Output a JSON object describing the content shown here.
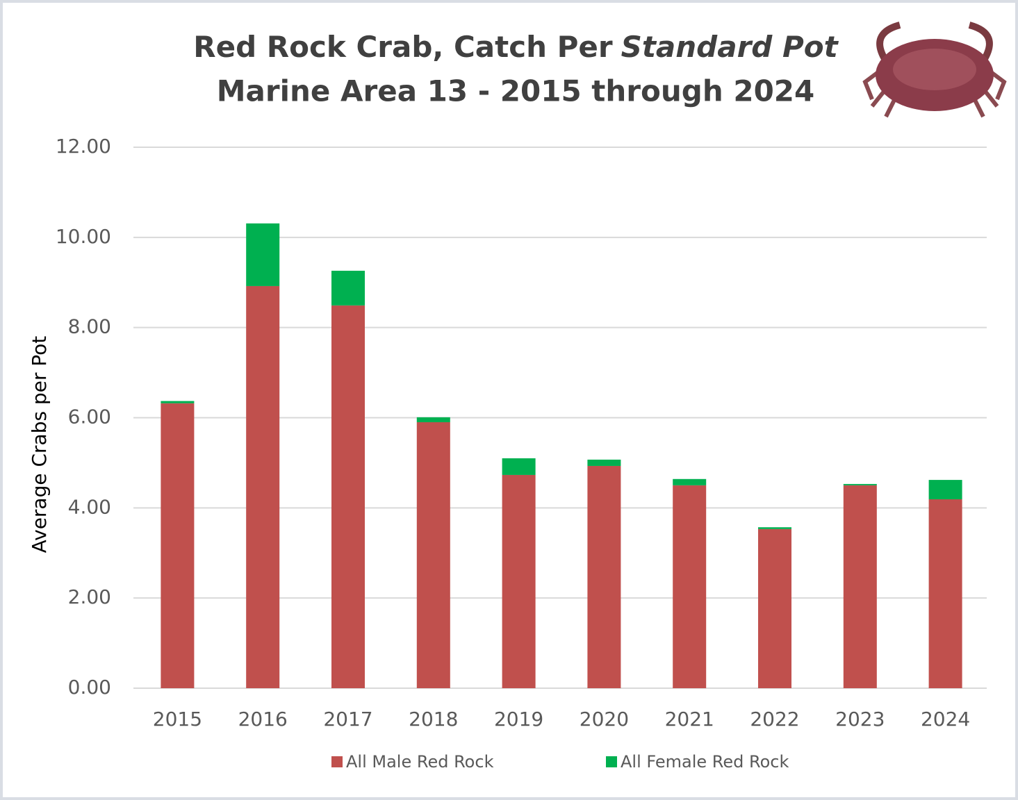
{
  "chart_data": {
    "type": "stacked_bar",
    "title": "Red Rock Crab, Catch Per",
    "title_italic": "Standard Pot",
    "subtitle": "Marine Area 13 - 2015 through 2024",
    "y_label": "Average Crabs per Pot",
    "categories": [
      "2015",
      "2016",
      "2017",
      "2018",
      "2019",
      "2020",
      "2021",
      "2022",
      "2023",
      "2024"
    ],
    "series": [
      {
        "name": "All Male Red Rock",
        "color": "#c0504d",
        "values": [
          6.32,
          8.92,
          8.49,
          5.9,
          4.73,
          4.93,
          4.5,
          3.53,
          4.5,
          4.19
        ]
      },
      {
        "name": "All Female Red Rock",
        "color": "#00b050",
        "values": [
          0.05,
          1.39,
          0.77,
          0.11,
          0.37,
          0.14,
          0.14,
          0.04,
          0.03,
          0.43
        ]
      }
    ],
    "ylim": [
      0,
      12
    ],
    "yticks": [
      {
        "value": 0,
        "label": "0.00"
      },
      {
        "value": 2,
        "label": "2.00"
      },
      {
        "value": 4,
        "label": "4.00"
      },
      {
        "value": 6,
        "label": "6.00"
      },
      {
        "value": 8,
        "label": "8.00"
      },
      {
        "value": 10,
        "label": "10.00"
      },
      {
        "value": 12,
        "label": "12.00"
      }
    ],
    "grid": true,
    "legend": "bottom"
  }
}
